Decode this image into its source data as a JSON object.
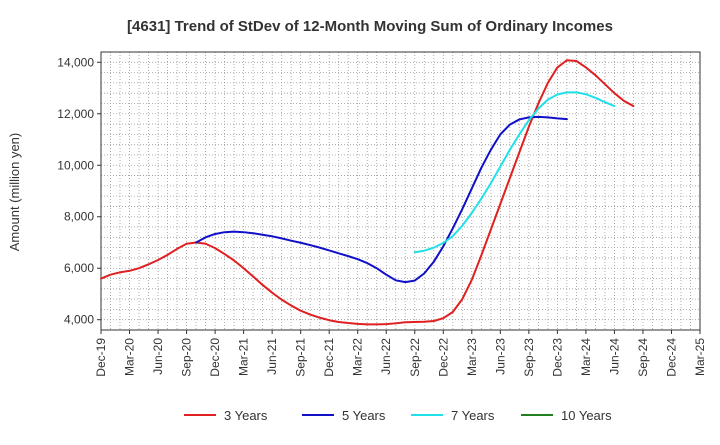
{
  "chart_data": {
    "type": "line",
    "title": "[4631]  Trend of StDev of 12-Month Moving Sum of Ordinary Incomes",
    "xlabel": "",
    "ylabel": "Amount (million yen)",
    "ylim": [
      3600,
      14400
    ],
    "yticks": [
      4000,
      6000,
      8000,
      10000,
      12000,
      14000
    ],
    "ytick_labels": [
      "4,000",
      "6,000",
      "8,000",
      "10,000",
      "12,000",
      "14,000"
    ],
    "xtick_labels": [
      "Dec-19",
      "Mar-20",
      "Jun-20",
      "Sep-20",
      "Dec-20",
      "Mar-21",
      "Jun-21",
      "Sep-21",
      "Dec-21",
      "Mar-22",
      "Jun-22",
      "Sep-22",
      "Dec-22",
      "Mar-23",
      "Jun-23",
      "Sep-23",
      "Dec-23",
      "Mar-24",
      "Jun-24",
      "Sep-24",
      "Dec-24",
      "Mar-25"
    ],
    "grid": true,
    "legend_position": "bottom",
    "series": [
      {
        "name": "3 Years",
        "color": "#e02020",
        "start_index": 0,
        "values": [
          5600,
          5750,
          5840,
          5900,
          6000,
          6150,
          6320,
          6520,
          6750,
          6950,
          7000,
          6950,
          6780,
          6550,
          6300,
          6000,
          5680,
          5350,
          5050,
          4780,
          4550,
          4350,
          4200,
          4080,
          3980,
          3910,
          3870,
          3840,
          3820,
          3820,
          3830,
          3860,
          3900,
          3910,
          3920,
          3950,
          4060,
          4300,
          4800,
          5550,
          6500,
          7500,
          8500,
          9500,
          10500,
          11500,
          12400,
          13200,
          13800,
          14080,
          14050,
          13800,
          13500,
          13150,
          12800,
          12500,
          12300
        ]
      },
      {
        "name": "5 Years",
        "color": "#1010c8",
        "start_index": 10,
        "values": [
          7000,
          7200,
          7330,
          7400,
          7420,
          7400,
          7360,
          7300,
          7240,
          7160,
          7070,
          6990,
          6900,
          6800,
          6690,
          6580,
          6470,
          6350,
          6200,
          6000,
          5750,
          5530,
          5460,
          5520,
          5800,
          6250,
          6850,
          7550,
          8300,
          9100,
          9900,
          10600,
          11200,
          11580,
          11780,
          11860,
          11880,
          11860,
          11820,
          11790
        ]
      },
      {
        "name": "7 Years",
        "color": "#20e0e8",
        "start_index": 33,
        "values": [
          6620,
          6680,
          6800,
          6980,
          7250,
          7650,
          8150,
          8700,
          9300,
          9950,
          10600,
          11200,
          11750,
          12200,
          12550,
          12750,
          12830,
          12830,
          12760,
          12620,
          12450,
          12300
        ]
      },
      {
        "name": "10 Years",
        "color": "#208020",
        "start_index": 0,
        "values": []
      }
    ]
  }
}
